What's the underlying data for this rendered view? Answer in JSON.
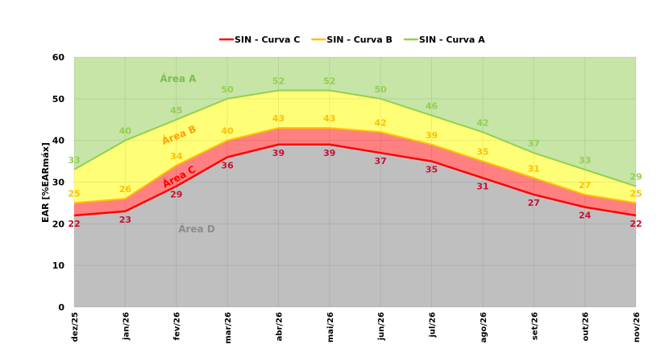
{
  "chart_data": {
    "type": "area",
    "ylabel": "EAR [%EARmáx]",
    "ylim": [
      0,
      60
    ],
    "yticks": [
      0,
      10,
      20,
      30,
      40,
      50,
      60
    ],
    "grid": true,
    "legend_placement": "top",
    "categories": [
      "dez/25",
      "jan/26",
      "fev/26",
      "mar/26",
      "abr/26",
      "mai/26",
      "jun/26",
      "jul/26",
      "ago/26",
      "set/26",
      "out/26",
      "nov/26"
    ],
    "series": [
      {
        "name": "SIN - Curva C",
        "color": "#ff0000",
        "label_color": "#c8102e",
        "values": [
          22,
          23,
          29,
          36,
          39,
          39,
          37,
          35,
          31,
          27,
          24,
          22
        ]
      },
      {
        "name": "SIN - Curva B",
        "color": "#ffc000",
        "label_color": "#ffc000",
        "values": [
          25,
          26,
          34,
          40,
          43,
          43,
          42,
          39,
          35,
          31,
          27,
          25
        ]
      },
      {
        "name": "SIN - Curva A",
        "color": "#92d050",
        "label_color": "#92d050",
        "values": [
          33,
          40,
          45,
          50,
          52,
          52,
          50,
          46,
          42,
          37,
          33,
          29
        ]
      }
    ],
    "areas": [
      {
        "label": "Área A",
        "color": "#c6e5a6"
      },
      {
        "label": "Área B",
        "color": "#ffff77"
      },
      {
        "label": "Área C",
        "color": "#ff8080"
      },
      {
        "label": "Área D",
        "color": "#bfbfbf"
      }
    ]
  }
}
